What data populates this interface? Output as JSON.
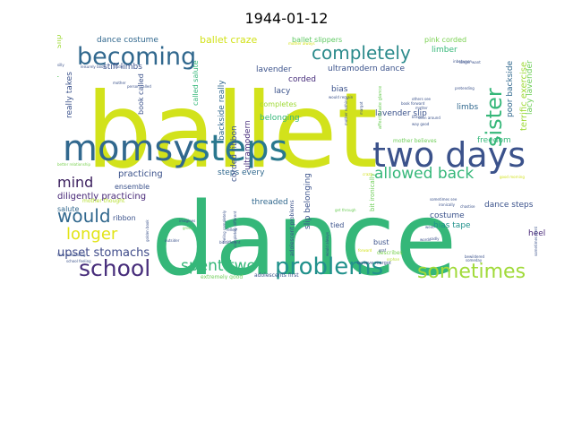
{
  "title": "1944-01-12",
  "palette": {
    "yellow": "#d2e21b",
    "green": "#35b779",
    "teal": "#31688e",
    "purple": "#482878",
    "lightgreen": "#6ece58"
  },
  "words": [
    {
      "text": "ballet",
      "color": "#d2e21b"
    },
    {
      "text": "dance",
      "color": "#35b779"
    },
    {
      "text": "momsy",
      "color": "#31688e"
    },
    {
      "text": "steps",
      "color": "#2a788e"
    },
    {
      "text": "two days",
      "color": "#3b528b"
    },
    {
      "text": "becoming",
      "color": "#31688e"
    },
    {
      "text": "completely",
      "color": "#2c8b8c"
    },
    {
      "text": "sister",
      "color": "#35b779"
    },
    {
      "text": "allowed back",
      "color": "#35b779"
    },
    {
      "text": "problems",
      "color": "#21918c"
    },
    {
      "text": "sometimes",
      "color": "#a0da39"
    },
    {
      "text": "school",
      "color": "#472d7b"
    },
    {
      "text": "spent two",
      "color": "#35b779"
    },
    {
      "text": "would",
      "color": "#31688e"
    },
    {
      "text": "longer",
      "color": "#e2e418"
    },
    {
      "text": "mind",
      "color": "#3b1f5e"
    },
    {
      "text": "upset stomachs",
      "color": "#3e4a89"
    },
    {
      "text": "diligently practicing",
      "color": "#482878"
    },
    {
      "text": "practicing",
      "color": "#3b528b"
    },
    {
      "text": "ballet craze",
      "color": "#d2e21b"
    },
    {
      "text": "dance costume",
      "color": "#31688e"
    },
    {
      "text": "stiff limbs",
      "color": "#3b528b"
    },
    {
      "text": "ballet slippers",
      "color": "#5ec962"
    },
    {
      "text": "ultramodern dance",
      "color": "#3b528b"
    },
    {
      "text": "pink corded",
      "color": "#7ad151"
    },
    {
      "text": "limber",
      "color": "#35b779"
    },
    {
      "text": "terrific exercise",
      "color": "#a0da39"
    },
    {
      "text": "poor backside",
      "color": "#31688e"
    },
    {
      "text": "lacy lavender",
      "color": "#6ece58"
    },
    {
      "text": "lavender",
      "color": "#3b528b"
    },
    {
      "text": "corded",
      "color": "#472d7b"
    },
    {
      "text": "lacy",
      "color": "#3b528b"
    },
    {
      "text": "bias",
      "color": "#3b528b"
    },
    {
      "text": "completes",
      "color": "#a0da39"
    },
    {
      "text": "belonging",
      "color": "#35b779"
    },
    {
      "text": "lavender slip",
      "color": "#3b528b"
    },
    {
      "text": "limbs",
      "color": "#31688e"
    },
    {
      "text": "freedom",
      "color": "#35b779"
    },
    {
      "text": "dance steps",
      "color": "#3b528b"
    },
    {
      "text": "costume",
      "color": "#3b528b"
    },
    {
      "text": "bias tape",
      "color": "#21918c"
    },
    {
      "text": "heel",
      "color": "#482878"
    },
    {
      "text": "bust",
      "color": "#3b528b"
    },
    {
      "text": "tied",
      "color": "#3b528b"
    },
    {
      "text": "threaded",
      "color": "#31688e"
    },
    {
      "text": "steps every",
      "color": "#31688e"
    },
    {
      "text": "ensemble",
      "color": "#3b528b"
    },
    {
      "text": "ribbon",
      "color": "#3b528b"
    },
    {
      "text": "salute",
      "color": "#31688e"
    },
    {
      "text": "really takes",
      "color": "#3b528b"
    },
    {
      "text": "book called",
      "color": "#3b528b"
    },
    {
      "text": "called salute",
      "color": "#35b779"
    },
    {
      "text": "backside really",
      "color": "#31688e"
    },
    {
      "text": "corded ribbon",
      "color": "#3b528b"
    },
    {
      "text": "ultramodern",
      "color": "#472d7b"
    },
    {
      "text": "slip belonging",
      "color": "#3b528b"
    },
    {
      "text": "ribbon completes",
      "color": "#5ec962"
    },
    {
      "text": "slip",
      "color": "#a0da39"
    },
    {
      "text": "mother believes",
      "color": "#6ece58"
    },
    {
      "text": "mother thought",
      "color": "#b5de2b"
    },
    {
      "text": "adolescent problems",
      "color": "#3b528b"
    },
    {
      "text": "bit ironically",
      "color": "#6ece58"
    },
    {
      "text": "describes",
      "color": "#7ad151"
    },
    {
      "text": "believe margot",
      "color": "#3b528b"
    },
    {
      "text": "adolescents first",
      "color": "#3b528b"
    },
    {
      "text": "extremely good",
      "color": "#6ece58"
    },
    {
      "text": "sometimes see",
      "color": "#3b528b"
    },
    {
      "text": "chastise",
      "color": "#3b528b"
    },
    {
      "text": "good morning",
      "color": "#d2e21b"
    },
    {
      "text": "someday",
      "color": "#3b528b"
    },
    {
      "text": "others see",
      "color": "#3b528b"
    },
    {
      "text": "seen around",
      "color": "#3b528b"
    },
    {
      "text": "pretending",
      "color": "#3b528b"
    },
    {
      "text": "affectionate glance",
      "color": "#6ece58"
    },
    {
      "text": "bewildered",
      "color": "#3b528b"
    },
    {
      "text": "ironically",
      "color": "#3b528b"
    },
    {
      "text": "sometimes went",
      "color": "#3b528b"
    },
    {
      "text": "mother nothing",
      "color": "#3b528b"
    },
    {
      "text": "margot",
      "color": "#3b528b"
    },
    {
      "text": "brave",
      "color": "#3b528b"
    },
    {
      "text": "matter",
      "color": "#3b528b"
    },
    {
      "text": "way good",
      "color": "#3b528b"
    },
    {
      "text": "book forward",
      "color": "#3b528b"
    },
    {
      "text": "orphan",
      "color": "#b5de2b"
    },
    {
      "text": "graf",
      "color": "#3b528b"
    },
    {
      "text": "would always",
      "color": "#3b528b"
    },
    {
      "text": "went",
      "color": "#3b528b"
    },
    {
      "text": "forward",
      "color": "#d2e21b"
    },
    {
      "text": "words",
      "color": "#3b528b"
    },
    {
      "text": "get through",
      "color": "#6ece58"
    },
    {
      "text": "crazy",
      "color": "#d2e21b"
    },
    {
      "text": "mother always",
      "color": "#d2e21b"
    },
    {
      "text": "would remain",
      "color": "#3b528b"
    },
    {
      "text": "longer want",
      "color": "#3b528b"
    },
    {
      "text": "inbetween",
      "color": "#3b528b"
    },
    {
      "text": "sadly",
      "color": "#3b528b"
    },
    {
      "text": "leisurely book",
      "color": "#3b528b"
    },
    {
      "text": "person called",
      "color": "#3b528b"
    },
    {
      "text": "better relationship",
      "color": "#7ad151"
    },
    {
      "text": "bit different",
      "color": "#3b528b"
    },
    {
      "text": "imagines",
      "color": "#3b528b"
    },
    {
      "text": "green",
      "color": "#6ece58"
    },
    {
      "text": "golden book",
      "color": "#3b528b"
    },
    {
      "text": "fellow",
      "color": "#3b528b"
    },
    {
      "text": "love pretending",
      "color": "#3b528b"
    },
    {
      "text": "school feeling",
      "color": "#3b528b"
    },
    {
      "text": "outsider",
      "color": "#3b528b"
    },
    {
      "text": "feeling completely",
      "color": "#3b528b"
    },
    {
      "text": "completely different",
      "color": "#3b528b"
    },
    {
      "text": "mother",
      "color": "#3b528b"
    },
    {
      "text": "silly",
      "color": "#3b528b"
    },
    {
      "text": "rude",
      "color": "#3b528b"
    }
  ]
}
